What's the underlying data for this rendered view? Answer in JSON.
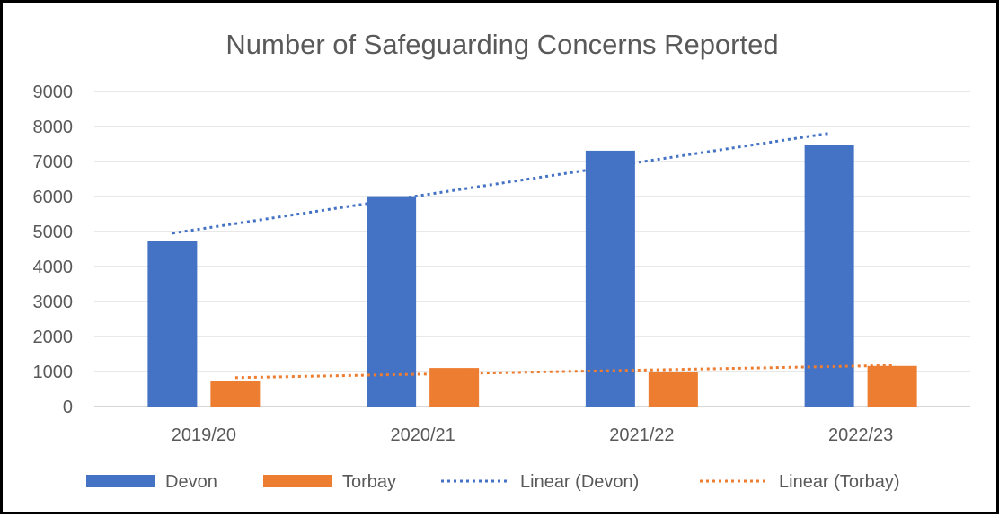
{
  "chart_data": {
    "type": "bar",
    "title": "Number of Safeguarding Concerns Reported",
    "categories": [
      "2019/20",
      "2020/21",
      "2021/22",
      "2022/23"
    ],
    "series": [
      {
        "name": "Devon",
        "values": [
          4730,
          6010,
          7310,
          7470
        ],
        "color": "#4472C4"
      },
      {
        "name": "Torbay",
        "values": [
          740,
          1100,
          1000,
          1160
        ],
        "color": "#ED7D31"
      }
    ],
    "trendlines": [
      {
        "name": "Linear (Devon)",
        "of_series": "Devon",
        "type": "linear",
        "style": "dotted",
        "color": "#4472C4"
      },
      {
        "name": "Linear (Torbay)",
        "of_series": "Torbay",
        "type": "linear",
        "style": "dotted",
        "color": "#ED7D31"
      }
    ],
    "ylim": [
      0,
      9000
    ],
    "yticks": [
      0,
      1000,
      2000,
      3000,
      4000,
      5000,
      6000,
      7000,
      8000,
      9000
    ],
    "grid": true,
    "legend_position": "bottom",
    "xlabel": "",
    "ylabel": ""
  }
}
